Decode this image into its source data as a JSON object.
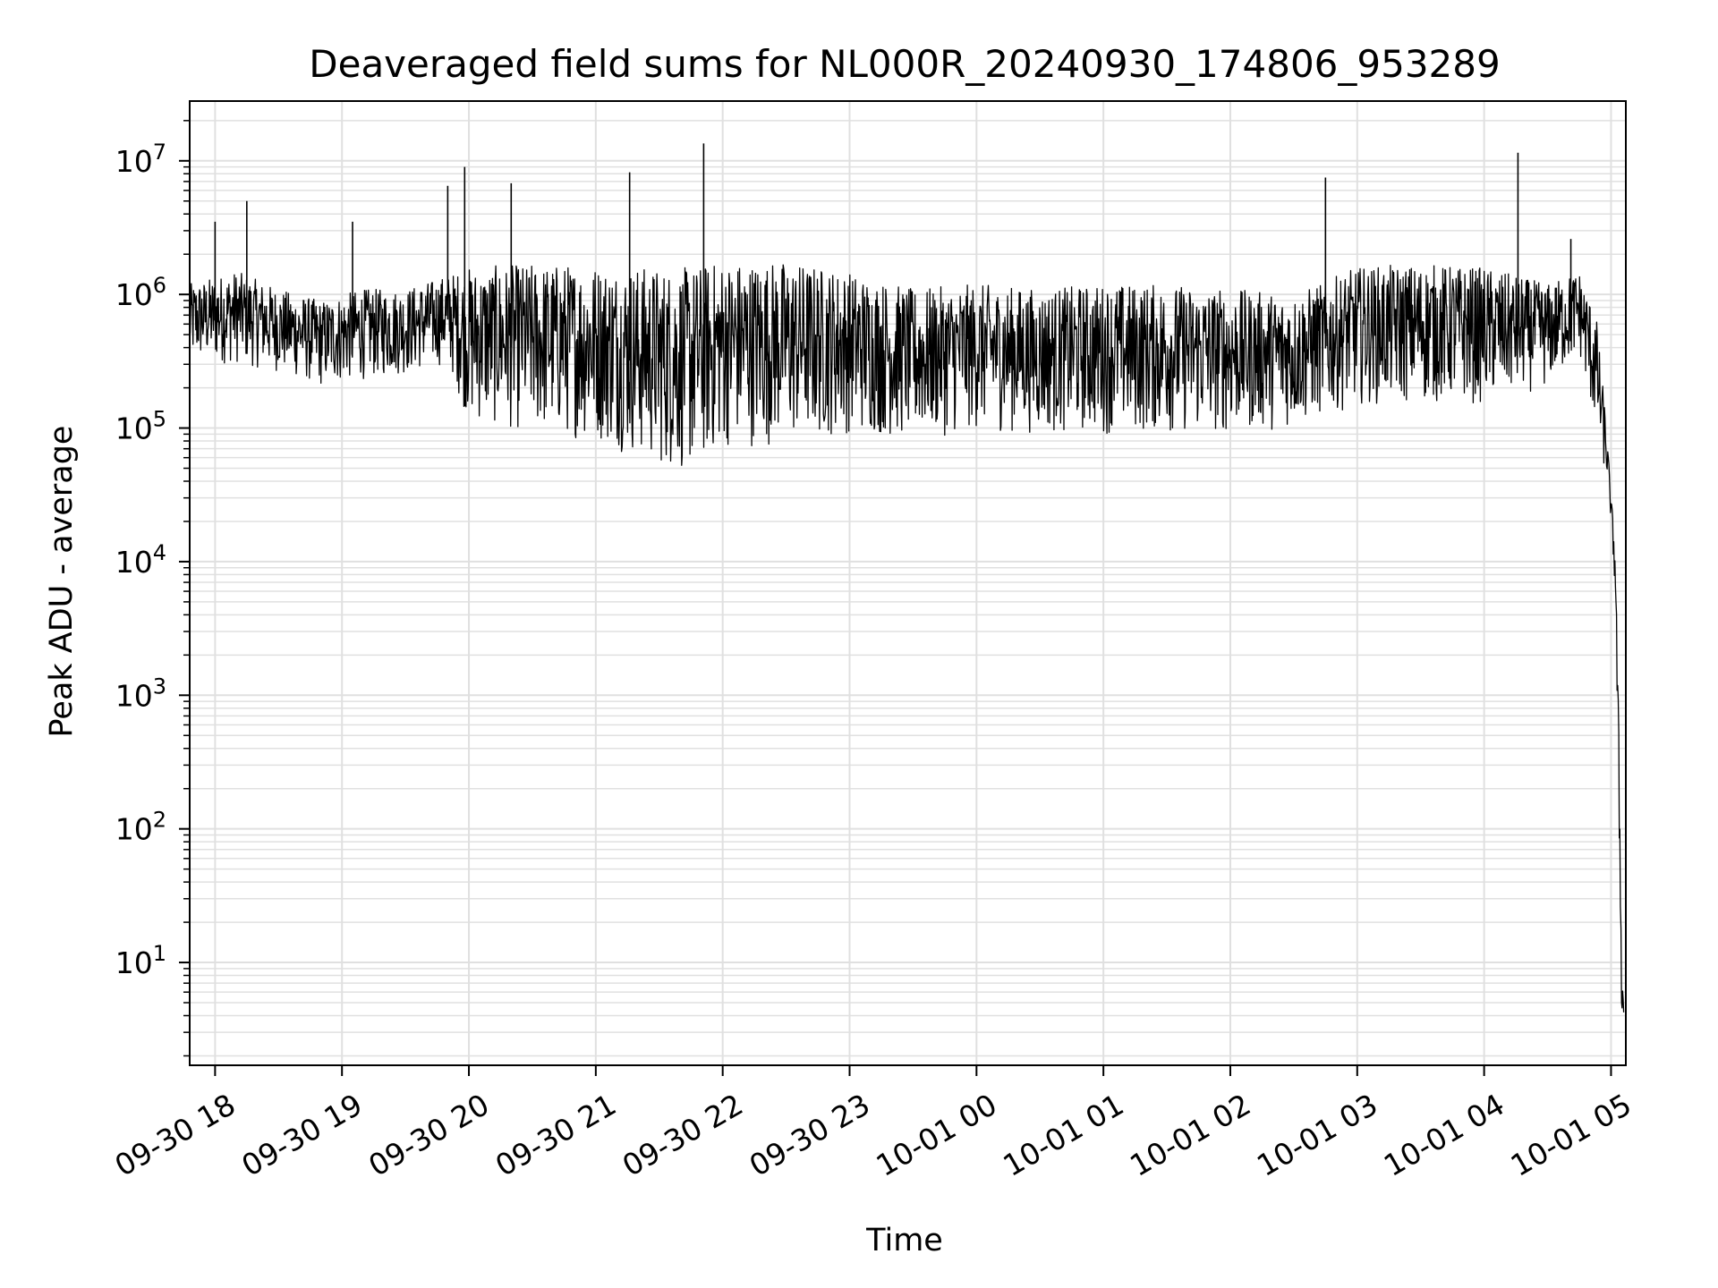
{
  "chart_data": {
    "type": "line",
    "title": "Deaveraged field sums for NL000R_20240930_174806_953289",
    "xlabel": "Time",
    "ylabel": "Peak ADU - average",
    "yscale": "log",
    "ylim": [
      1.7,
      28000000
    ],
    "xlim": [
      "09-30 17:48",
      "10-01 05:07"
    ],
    "grid": true,
    "line_color": "#000000",
    "grid_color": "#e0e0e0",
    "x_ticks": [
      {
        "label": "09-30 18",
        "t": "09-30 18:00"
      },
      {
        "label": "09-30 19",
        "t": "09-30 19:00"
      },
      {
        "label": "09-30 20",
        "t": "09-30 20:00"
      },
      {
        "label": "09-30 21",
        "t": "09-30 21:00"
      },
      {
        "label": "09-30 22",
        "t": "09-30 22:00"
      },
      {
        "label": "09-30 23",
        "t": "09-30 23:00"
      },
      {
        "label": "10-01 00",
        "t": "10-01 00:00"
      },
      {
        "label": "10-01 01",
        "t": "10-01 01:00"
      },
      {
        "label": "10-01 02",
        "t": "10-01 02:00"
      },
      {
        "label": "10-01 03",
        "t": "10-01 03:00"
      },
      {
        "label": "10-01 04",
        "t": "10-01 04:00"
      },
      {
        "label": "10-01 05",
        "t": "10-01 05:00"
      }
    ],
    "y_ticks": [
      {
        "mantissa": "10",
        "exp": "1",
        "value": 10
      },
      {
        "mantissa": "10",
        "exp": "2",
        "value": 100
      },
      {
        "mantissa": "10",
        "exp": "3",
        "value": 1000
      },
      {
        "mantissa": "10",
        "exp": "4",
        "value": 10000
      },
      {
        "mantissa": "10",
        "exp": "5",
        "value": 100000
      },
      {
        "mantissa": "10",
        "exp": "6",
        "value": 1000000
      },
      {
        "mantissa": "10",
        "exp": "7",
        "value": 10000000
      }
    ],
    "series": [
      {
        "band": [
          {
            "t": "09-30 17:48",
            "low": 300000,
            "high": 1200000
          },
          {
            "t": "09-30 18:10",
            "low": 300000,
            "high": 1500000
          },
          {
            "t": "09-30 18:30",
            "low": 260000,
            "high": 1100000
          },
          {
            "t": "09-30 18:50",
            "low": 200000,
            "high": 900000
          },
          {
            "t": "09-30 19:10",
            "low": 230000,
            "high": 1100000
          },
          {
            "t": "09-30 19:30",
            "low": 250000,
            "high": 1100000
          },
          {
            "t": "09-30 19:50",
            "low": 300000,
            "high": 1400000
          },
          {
            "t": "09-30 20:00",
            "low": 110000,
            "high": 1600000
          },
          {
            "t": "09-30 20:30",
            "low": 90000,
            "high": 1700000
          },
          {
            "t": "09-30 21:00",
            "low": 80000,
            "high": 1700000
          },
          {
            "t": "09-30 21:30",
            "low": 50000,
            "high": 1600000
          },
          {
            "t": "09-30 21:45",
            "low": 45000,
            "high": 1600000
          },
          {
            "t": "09-30 22:00",
            "low": 70000,
            "high": 1800000
          },
          {
            "t": "09-30 22:30",
            "low": 75000,
            "high": 1800000
          },
          {
            "t": "09-30 23:00",
            "low": 90000,
            "high": 1500000
          },
          {
            "t": "09-30 23:30",
            "low": 80000,
            "high": 1100000
          },
          {
            "t": "10-01 00:00",
            "low": 95000,
            "high": 1200000
          },
          {
            "t": "10-01 00:30",
            "low": 90000,
            "high": 1100000
          },
          {
            "t": "10-01 01:00",
            "low": 90000,
            "high": 1200000
          },
          {
            "t": "10-01 01:30",
            "low": 90000,
            "high": 1200000
          },
          {
            "t": "10-01 02:00",
            "low": 90000,
            "high": 1100000
          },
          {
            "t": "10-01 02:30",
            "low": 100000,
            "high": 1000000
          },
          {
            "t": "10-01 03:00",
            "low": 150000,
            "high": 1600000
          },
          {
            "t": "10-01 03:30",
            "low": 150000,
            "high": 1700000
          },
          {
            "t": "10-01 04:00",
            "low": 150000,
            "high": 1600000
          },
          {
            "t": "10-01 04:30",
            "low": 200000,
            "high": 1200000
          },
          {
            "t": "10-01 04:45",
            "low": 350000,
            "high": 1500000
          },
          {
            "t": "10-01 04:53",
            "low": 90000,
            "high": 700000
          },
          {
            "t": "10-01 04:58",
            "low": 40000,
            "high": 100000
          },
          {
            "t": "10-01 05:00",
            "low": 20000,
            "high": 30000
          },
          {
            "t": "10-01 05:02",
            "low": 5000,
            "high": 15000
          },
          {
            "t": "10-01 05:04",
            "low": 50,
            "high": 300
          },
          {
            "t": "10-01 05:05",
            "low": 4,
            "high": 10
          },
          {
            "t": "10-01 05:06",
            "low": 3.7,
            "high": 5
          }
        ],
        "spikes": [
          {
            "t": "09-30 18:00",
            "value": 3500000
          },
          {
            "t": "09-30 18:15",
            "value": 5000000
          },
          {
            "t": "09-30 19:05",
            "value": 3500000
          },
          {
            "t": "09-30 19:50",
            "value": 6500000
          },
          {
            "t": "09-30 19:58",
            "value": 9000000
          },
          {
            "t": "09-30 20:20",
            "value": 6800000
          },
          {
            "t": "09-30 21:16",
            "value": 8200000
          },
          {
            "t": "09-30 21:51",
            "value": 13500000
          },
          {
            "t": "10-01 02:45",
            "value": 7500000
          },
          {
            "t": "10-01 04:16",
            "value": 11500000
          },
          {
            "t": "10-01 04:41",
            "value": 2600000
          }
        ]
      }
    ]
  }
}
